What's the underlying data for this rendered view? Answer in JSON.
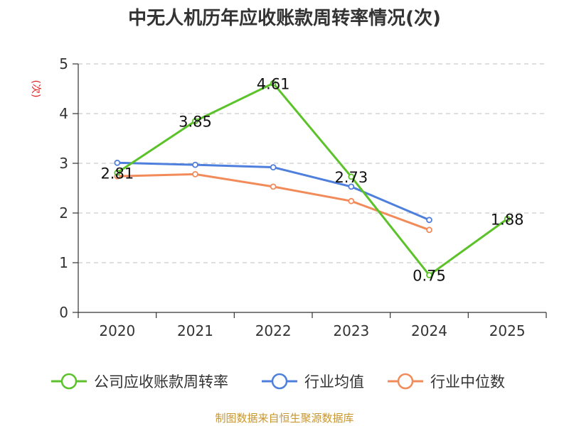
{
  "chart_data": {
    "type": "line",
    "title": "中无人机历年应收账款周转率情况(次)",
    "ylabel": "(次)",
    "xlabel": "",
    "categories": [
      "2020",
      "2021",
      "2022",
      "2023",
      "2024",
      "2025"
    ],
    "ylim": [
      0,
      5
    ],
    "yticks": [
      0,
      1,
      2,
      3,
      4,
      5
    ],
    "grid": true,
    "legend_position": "bottom",
    "series": [
      {
        "name": "公司应收账款周转率",
        "color": "#5cc22a",
        "values": [
          2.81,
          3.85,
          4.61,
          2.73,
          0.75,
          1.88
        ],
        "labels": [
          "2.81",
          "3.85",
          "4.61",
          "2.73",
          "0.75",
          "1.88"
        ]
      },
      {
        "name": "行业均值",
        "color": "#4f7fdc",
        "values": [
          3.01,
          2.97,
          2.92,
          2.53,
          1.86,
          null
        ]
      },
      {
        "name": "行业中位数",
        "color": "#f28b5a",
        "values": [
          2.74,
          2.78,
          2.53,
          2.24,
          1.66,
          null
        ]
      }
    ],
    "source": "制图数据来自恒生聚源数据库"
  }
}
